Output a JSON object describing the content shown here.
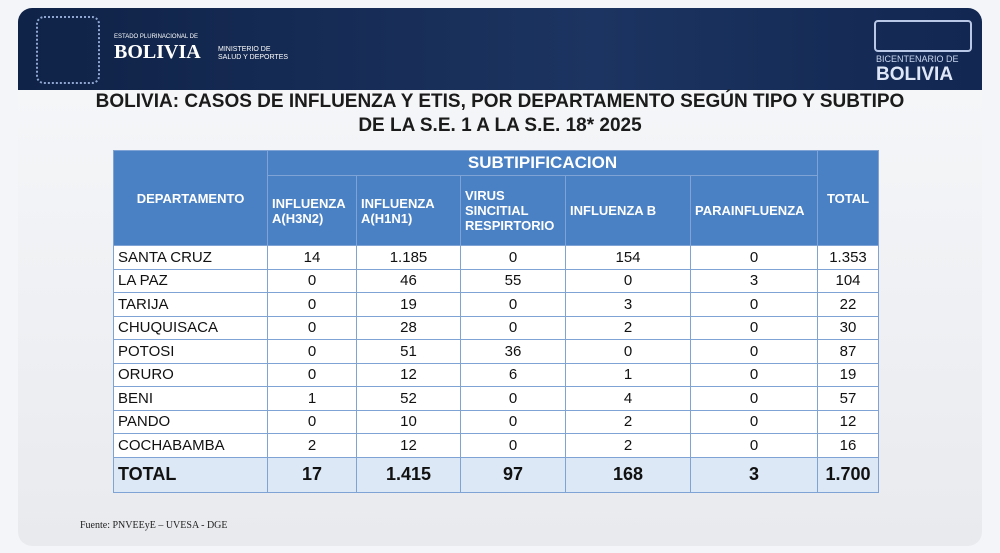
{
  "header": {
    "left_small": "ESTADO PLURINACIONAL DE",
    "left_big": "BOLIVIA",
    "ministry_1": "MINISTERIO DE",
    "ministry_2": "SALUD Y DEPORTES",
    "right_small": "BICENTENARIO DE",
    "right_big": "BOLIVIA"
  },
  "title_lines": [
    "BOLIVIA: CASOS DE INFLUENZA Y ETIS, POR DEPARTAMENTO SEGÚN TIPO Y SUBTIPO",
    "DE LA S.E. 1 A LA S.E. 18* 2025"
  ],
  "table": {
    "dept_header": "DEPARTAMENTO",
    "group_header": "SUBTIPIFICACION",
    "total_header": "TOTAL",
    "subheaders": [
      "INFLUENZA A(H3N2)",
      "INFLUENZA A(H1N1)",
      "VIRUS SINCITIAL RESPIRTORIO",
      "INFLUENZA B",
      "PARAINFLUENZA"
    ],
    "rows": [
      [
        "SANTA CRUZ",
        "14",
        "1.185",
        "0",
        "154",
        "0",
        "1.353"
      ],
      [
        "LA PAZ",
        "0",
        "46",
        "55",
        "0",
        "3",
        "104"
      ],
      [
        "TARIJA",
        "0",
        "19",
        "0",
        "3",
        "0",
        "22"
      ],
      [
        "CHUQUISACA",
        "0",
        "28",
        "0",
        "2",
        "0",
        "30"
      ],
      [
        "POTOSI",
        "0",
        "51",
        "36",
        "0",
        "0",
        "87"
      ],
      [
        "ORURO",
        "0",
        "12",
        "6",
        "1",
        "0",
        "19"
      ],
      [
        "BENI",
        "1",
        "52",
        "0",
        "4",
        "0",
        "57"
      ],
      [
        "PANDO",
        "0",
        "10",
        "0",
        "2",
        "0",
        "12"
      ],
      [
        "COCHABAMBA",
        "2",
        "12",
        "0",
        "2",
        "0",
        "16"
      ]
    ],
    "total_row": [
      "TOTAL",
      "17",
      "1.415",
      "97",
      "168",
      "3",
      "1.700"
    ]
  },
  "source": "Fuente: PNVEEyE – UVESA - DGE"
}
